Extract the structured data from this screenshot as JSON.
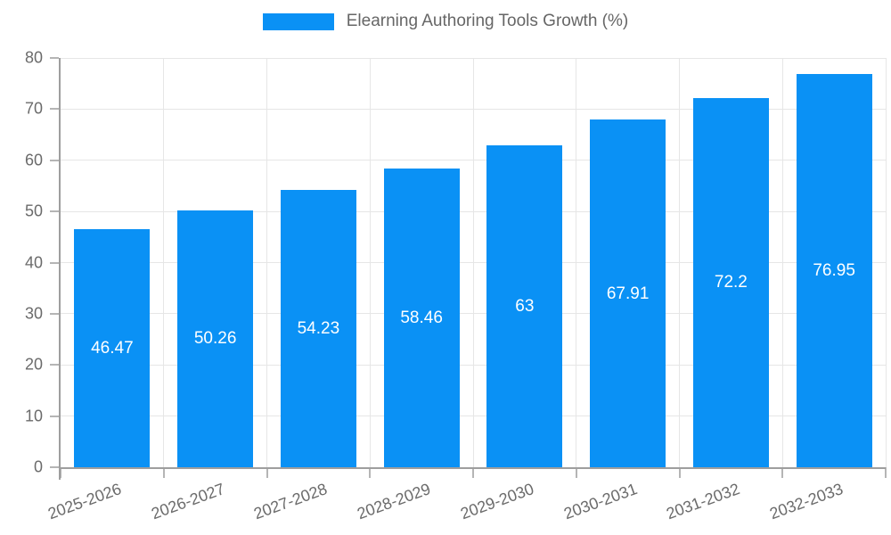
{
  "chart_data": {
    "type": "bar",
    "title": "Elearning Authoring Tools Growth (%)",
    "legend": {
      "position": "top",
      "entries": [
        {
          "label": "Elearning Authoring Tools Growth (%)",
          "color": "#0a91f5"
        }
      ]
    },
    "categories": [
      "2025-2026",
      "2026-2027",
      "2027-2028",
      "2028-2029",
      "2029-2030",
      "2030-2031",
      "2031-2032",
      "2032-2033"
    ],
    "series": [
      {
        "name": "Elearning Authoring Tools Growth (%)",
        "color": "#0a91f5",
        "values": [
          46.47,
          50.26,
          54.23,
          58.46,
          63,
          67.91,
          72.2,
          76.95
        ]
      }
    ],
    "value_labels": [
      "46.47",
      "50.26",
      "54.23",
      "58.46",
      "63",
      "67.91",
      "72.2",
      "76.95"
    ],
    "xlabel": "",
    "ylabel": "",
    "ylim": [
      0,
      80
    ],
    "yticks": [
      0,
      10,
      20,
      30,
      40,
      50,
      60,
      70,
      80
    ],
    "grid": true,
    "x_label_rotation_deg": -20,
    "colors": {
      "bar": "#0a91f5",
      "value_label": "#ffffff",
      "grid": "#e6e6e6",
      "axis": "#9e9e9e",
      "tick": "#b5b5b5",
      "tick_label": "#6b6b6b",
      "legend_text": "#666666",
      "background": "#ffffff"
    }
  }
}
